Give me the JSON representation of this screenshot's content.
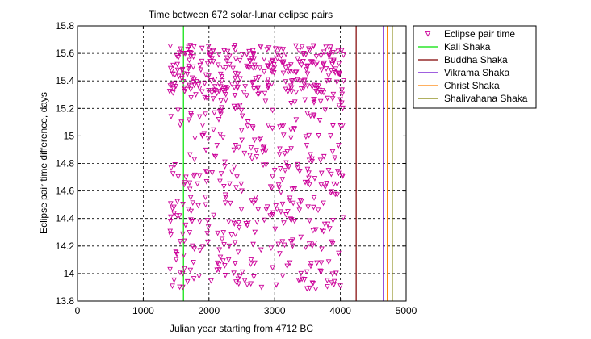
{
  "chart_data": {
    "type": "scatter",
    "title": "Time between 672 solar-lunar eclipse pairs",
    "xlabel": "Julian year starting from 4712 BC",
    "ylabel": "Eclipse pair time difference, days",
    "xlim": [
      0,
      5000
    ],
    "ylim": [
      13.8,
      15.8
    ],
    "x_ticks": [
      "0",
      "1000",
      "2000",
      "3000",
      "4000",
      "5000"
    ],
    "y_ticks": [
      "13.8",
      "14",
      "14.2",
      "14.4",
      "14.6",
      "14.8",
      "15",
      "15.2",
      "15.4",
      "15.6",
      "15.8"
    ],
    "grid": true,
    "legend_position": "outside-top-right",
    "scatter_series": {
      "name": "Eclipse pair time",
      "color": "#cc0099",
      "marker": "triangle-down",
      "x_range": [
        1400,
        4050
      ],
      "y_range": [
        13.88,
        15.66
      ],
      "count": 672,
      "points_sample": [
        [
          1420,
          14.28
        ],
        [
          1450,
          15.45
        ],
        [
          1480,
          15.38
        ],
        [
          1500,
          14.15
        ],
        [
          1520,
          15.52
        ],
        [
          1550,
          14.42
        ],
        [
          1580,
          15.1
        ],
        [
          1600,
          14.0
        ],
        [
          1620,
          15.6
        ],
        [
          1650,
          14.7
        ],
        [
          1700,
          15.55
        ],
        [
          1750,
          14.2
        ],
        [
          1800,
          15.3
        ],
        [
          1850,
          13.98
        ],
        [
          1900,
          15.0
        ],
        [
          1950,
          14.5
        ],
        [
          2000,
          15.62
        ],
        [
          2100,
          14.85
        ],
        [
          2200,
          15.4
        ],
        [
          2300,
          14.1
        ],
        [
          2400,
          15.2
        ],
        [
          2500,
          14.6
        ],
        [
          2600,
          15.5
        ],
        [
          2700,
          14.3
        ],
        [
          2800,
          13.9
        ],
        [
          2900,
          15.35
        ],
        [
          3000,
          14.75
        ],
        [
          3100,
          15.58
        ],
        [
          3200,
          14.45
        ],
        [
          3300,
          15.05
        ],
        [
          3400,
          14.0
        ],
        [
          3500,
          15.45
        ],
        [
          3600,
          14.55
        ],
        [
          3700,
          15.25
        ],
        [
          3800,
          13.95
        ],
        [
          3900,
          15.55
        ],
        [
          3950,
          14.65
        ],
        [
          4000,
          13.91
        ],
        [
          4020,
          15.62
        ],
        [
          4050,
          15.4
        ]
      ]
    },
    "vertical_lines": [
      {
        "name": "Kali Shaka",
        "x": 1612,
        "color": "#00e000"
      },
      {
        "name": "Buddha Shaka",
        "x": 4240,
        "color": "#800000"
      },
      {
        "name": "Vikrama Shaka",
        "x": 4655,
        "color": "#6600cc"
      },
      {
        "name": "Christ Shaka",
        "x": 4713,
        "color": "#ff8000"
      },
      {
        "name": "Shalivahana Shaka",
        "x": 4790,
        "color": "#808000"
      }
    ]
  }
}
